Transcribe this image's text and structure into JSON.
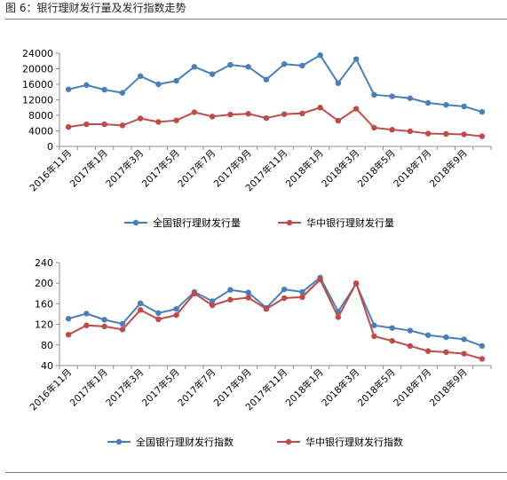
{
  "figure_title": "图 6：银行理财发行量及发行指数走势",
  "colors": {
    "national": "#4a7ebb",
    "central": "#be4b48",
    "axis": "#8c8c8c"
  },
  "chart_data": [
    {
      "type": "line",
      "x_tick_labels": [
        "2016年11月",
        "2017年1月",
        "2017年3月",
        "2017年5月",
        "2017年7月",
        "2017年9月",
        "2017年11月",
        "2018年1月",
        "2018年3月",
        "2018年5月",
        "2018年7月",
        "2018年9月"
      ],
      "x": [
        "2016-11",
        "2016-12",
        "2017-01",
        "2017-02",
        "2017-03",
        "2017-04",
        "2017-05",
        "2017-06",
        "2017-07",
        "2017-08",
        "2017-09",
        "2017-10",
        "2017-11",
        "2017-12",
        "2018-01",
        "2018-02",
        "2018-03",
        "2018-04",
        "2018-05",
        "2018-06",
        "2018-07",
        "2018-08",
        "2018-09",
        "2018-10"
      ],
      "ylim": [
        0,
        24000
      ],
      "yticks": [
        0,
        4000,
        8000,
        12000,
        16000,
        20000,
        24000
      ],
      "legend_position": "bottom",
      "series": [
        {
          "name": "全国银行理财发行量",
          "color": "#4a7ebb",
          "values": [
            14700,
            15800,
            14600,
            13800,
            18100,
            16000,
            16900,
            20500,
            18600,
            21000,
            20500,
            17200,
            21200,
            20800,
            23500,
            16300,
            22500,
            13300,
            12900,
            12400,
            11200,
            10700,
            10300,
            8900
          ]
        },
        {
          "name": "华中银行理财发行量",
          "color": "#be4b48",
          "values": [
            5000,
            5700,
            5700,
            5400,
            7200,
            6300,
            6700,
            8800,
            7700,
            8200,
            8400,
            7300,
            8300,
            8500,
            10000,
            6600,
            9700,
            4800,
            4300,
            3900,
            3300,
            3200,
            3100,
            2600
          ]
        }
      ]
    },
    {
      "type": "line",
      "x_tick_labels": [
        "2016年11月",
        "2017年1月",
        "2017年3月",
        "2017年5月",
        "2017年7月",
        "2017年9月",
        "2017年11月",
        "2018年1月",
        "2018年3月",
        "2018年5月",
        "2018年7月",
        "2018年9月"
      ],
      "x": [
        "2016-11",
        "2016-12",
        "2017-01",
        "2017-02",
        "2017-03",
        "2017-04",
        "2017-05",
        "2017-06",
        "2017-07",
        "2017-08",
        "2017-09",
        "2017-10",
        "2017-11",
        "2017-12",
        "2018-01",
        "2018-02",
        "2018-03",
        "2018-04",
        "2018-05",
        "2018-06",
        "2018-07",
        "2018-08",
        "2018-09",
        "2018-10"
      ],
      "ylim": [
        40,
        240
      ],
      "yticks": [
        40,
        80,
        120,
        160,
        200,
        240
      ],
      "legend_position": "bottom",
      "series": [
        {
          "name": "全国银行理财发行指数",
          "color": "#4a7ebb",
          "values": [
            131,
            141,
            129,
            121,
            161,
            142,
            150,
            183,
            165,
            187,
            182,
            152,
            188,
            183,
            211,
            145,
            199,
            118,
            113,
            108,
            99,
            95,
            91,
            78
          ]
        },
        {
          "name": "华中银行理财发行指数",
          "color": "#be4b48",
          "values": [
            100,
            118,
            116,
            110,
            148,
            130,
            138,
            180,
            157,
            168,
            172,
            150,
            171,
            173,
            207,
            134,
            200,
            97,
            88,
            78,
            68,
            66,
            63,
            53
          ]
        }
      ]
    }
  ]
}
